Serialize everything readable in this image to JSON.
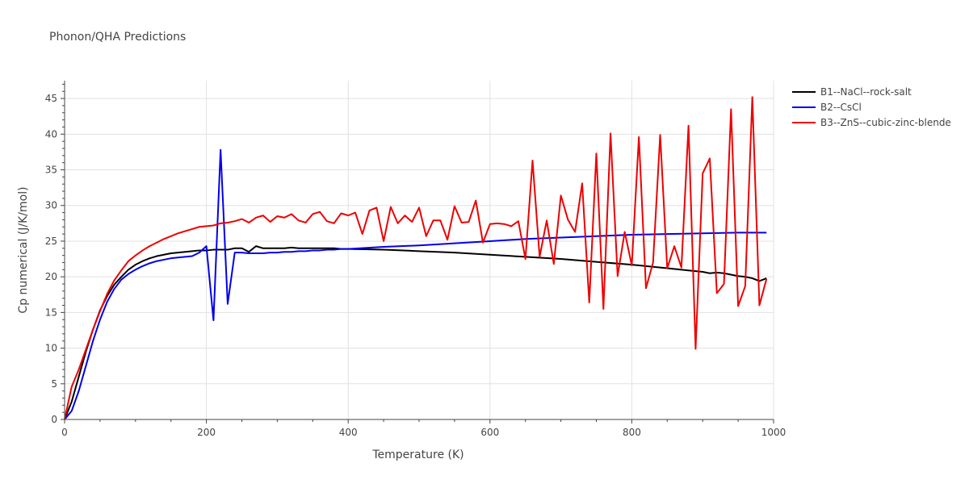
{
  "chart_data": {
    "type": "line",
    "title": "Phonon/QHA Predictions",
    "xlabel": "Temperature (K)",
    "ylabel": "Cp numerical (J/K/mol)",
    "xlim": [
      0,
      1000
    ],
    "ylim": [
      0,
      47.5
    ],
    "xticks": [
      0,
      200,
      400,
      600,
      800,
      1000
    ],
    "yticks": [
      0,
      5,
      10,
      15,
      20,
      25,
      30,
      35,
      40,
      45
    ],
    "grid": true,
    "legend_position": "top-right",
    "series": [
      {
        "name": "B1--NaCl--rock-salt",
        "color": "#000000",
        "x": [
          0,
          10,
          20,
          30,
          40,
          50,
          60,
          70,
          80,
          90,
          100,
          110,
          120,
          130,
          140,
          150,
          160,
          170,
          180,
          190,
          200,
          210,
          220,
          230,
          240,
          250,
          260,
          270,
          280,
          290,
          300,
          310,
          320,
          330,
          340,
          350,
          360,
          370,
          380,
          390,
          400,
          450,
          500,
          550,
          600,
          650,
          700,
          750,
          800,
          850,
          880,
          900,
          910,
          920,
          930,
          940,
          950,
          960,
          970,
          980,
          990
        ],
        "y": [
          0,
          2.5,
          6.0,
          9.5,
          12.6,
          15.3,
          17.3,
          18.9,
          20.0,
          21.0,
          21.7,
          22.2,
          22.6,
          22.9,
          23.1,
          23.3,
          23.4,
          23.5,
          23.6,
          23.7,
          23.7,
          23.8,
          23.8,
          23.8,
          24.0,
          24.0,
          23.5,
          24.3,
          24.0,
          24.0,
          24.0,
          24.0,
          24.1,
          24.0,
          24.0,
          24.0,
          24.0,
          24.0,
          24.0,
          23.9,
          23.9,
          23.8,
          23.6,
          23.4,
          23.1,
          22.8,
          22.5,
          22.1,
          21.7,
          21.2,
          20.9,
          20.7,
          20.5,
          20.6,
          20.5,
          20.3,
          20.1,
          20.0,
          19.8,
          19.4,
          19.8
        ]
      },
      {
        "name": "B2--CsCl",
        "color": "#0000ee",
        "x": [
          0,
          10,
          20,
          30,
          40,
          50,
          60,
          70,
          80,
          90,
          100,
          110,
          120,
          130,
          140,
          150,
          160,
          170,
          180,
          190,
          200,
          210,
          220,
          230,
          240,
          250,
          260,
          270,
          280,
          290,
          300,
          310,
          320,
          330,
          340,
          350,
          360,
          370,
          380,
          390,
          400,
          450,
          500,
          550,
          600,
          650,
          700,
          750,
          800,
          850,
          900,
          950,
          990
        ],
        "y": [
          0,
          1.2,
          4.0,
          7.5,
          11.0,
          14.0,
          16.5,
          18.3,
          19.6,
          20.4,
          21.0,
          21.5,
          21.9,
          22.2,
          22.4,
          22.6,
          22.7,
          22.8,
          22.9,
          23.4,
          24.3,
          13.9,
          37.8,
          16.2,
          23.4,
          23.4,
          23.3,
          23.3,
          23.3,
          23.4,
          23.4,
          23.5,
          23.5,
          23.6,
          23.6,
          23.7,
          23.7,
          23.8,
          23.8,
          23.9,
          23.9,
          24.2,
          24.4,
          24.7,
          25.0,
          25.3,
          25.5,
          25.7,
          25.9,
          26.0,
          26.1,
          26.2,
          26.2
        ]
      },
      {
        "name": "B3--ZnS--cubic-zinc-blende",
        "color": "#ee0000",
        "x": [
          0,
          10,
          20,
          30,
          40,
          50,
          60,
          70,
          80,
          90,
          100,
          110,
          120,
          130,
          140,
          150,
          160,
          170,
          180,
          190,
          200,
          210,
          220,
          230,
          240,
          250,
          260,
          270,
          280,
          290,
          300,
          310,
          320,
          330,
          340,
          350,
          360,
          370,
          380,
          390,
          400,
          410,
          420,
          430,
          440,
          450,
          460,
          470,
          480,
          490,
          500,
          510,
          520,
          530,
          540,
          550,
          560,
          570,
          580,
          590,
          600,
          610,
          620,
          630,
          640,
          650,
          660,
          670,
          680,
          690,
          700,
          710,
          720,
          730,
          740,
          750,
          760,
          770,
          780,
          790,
          800,
          810,
          820,
          830,
          840,
          850,
          860,
          870,
          880,
          890,
          900,
          910,
          920,
          930,
          940,
          950,
          960,
          970,
          980,
          990
        ],
        "y": [
          0,
          4.6,
          7.0,
          9.8,
          12.6,
          15.2,
          17.6,
          19.5,
          20.9,
          22.2,
          23.0,
          23.7,
          24.3,
          24.8,
          25.3,
          25.7,
          26.1,
          26.4,
          26.7,
          27.0,
          27.1,
          27.2,
          27.5,
          27.6,
          27.8,
          28.1,
          27.6,
          28.3,
          28.6,
          27.7,
          28.5,
          28.3,
          28.8,
          27.9,
          27.6,
          28.8,
          29.1,
          27.8,
          27.5,
          28.9,
          28.6,
          29.0,
          26.0,
          29.3,
          29.7,
          25.0,
          29.8,
          27.5,
          28.6,
          27.7,
          29.7,
          25.7,
          27.9,
          27.9,
          25.2,
          29.9,
          27.6,
          27.7,
          30.7,
          24.8,
          27.4,
          27.5,
          27.4,
          27.1,
          27.8,
          22.5,
          36.3,
          22.8,
          27.9,
          21.8,
          31.4,
          28.0,
          26.3,
          33.1,
          16.4,
          37.3,
          15.5,
          40.1,
          20.1,
          26.3,
          21.6,
          39.6,
          18.4,
          22.0,
          39.9,
          21.2,
          24.3,
          21.3,
          41.2,
          9.9,
          34.5,
          36.6,
          17.7,
          19.0,
          43.5,
          15.9,
          18.7,
          45.2,
          16.0,
          19.7
        ]
      }
    ]
  }
}
